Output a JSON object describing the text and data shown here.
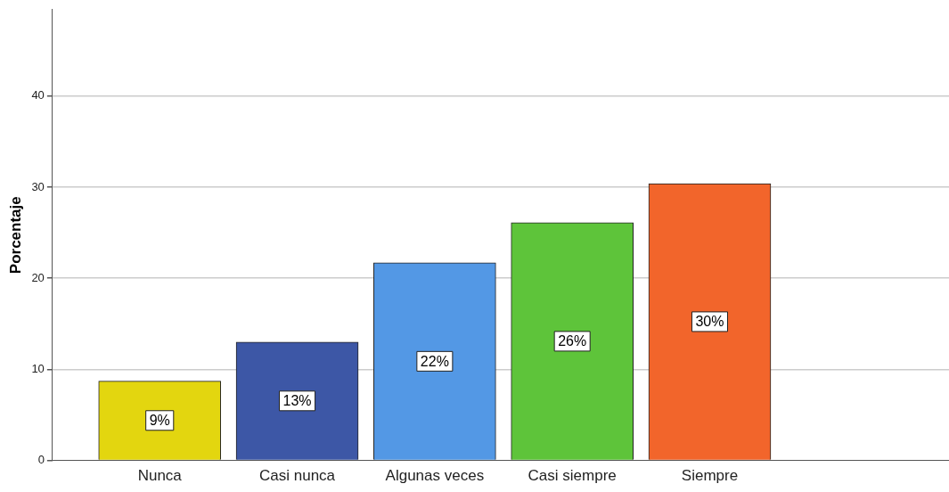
{
  "chart_data": {
    "type": "bar",
    "ylabel": "Porcentaje",
    "categories": [
      "Nunca",
      "Casi nunca",
      "Algunas veces",
      "Casi siempre",
      "Siempre"
    ],
    "values": [
      8.7,
      13.0,
      21.7,
      26.1,
      30.4
    ],
    "value_labels": [
      "9%",
      "13%",
      "22%",
      "26%",
      "30%"
    ],
    "colors": [
      "#e3d60f",
      "#3d57a6",
      "#5398e5",
      "#5ec43a",
      "#f2652b"
    ],
    "ylim": [
      0,
      49.5
    ],
    "yticks": [
      0,
      10,
      20,
      30,
      40
    ],
    "grid": "y",
    "legend": false
  }
}
